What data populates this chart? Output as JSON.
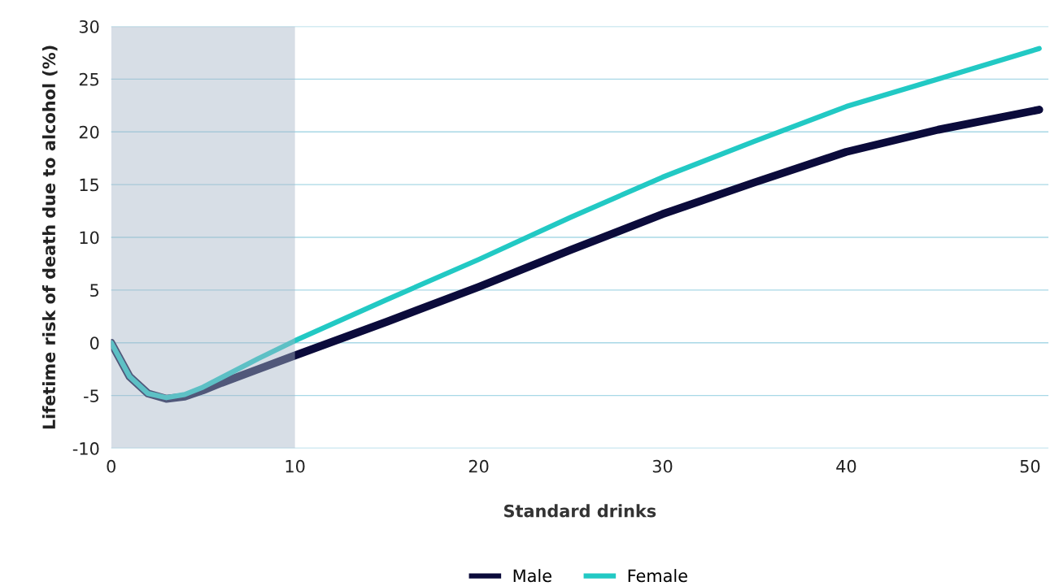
{
  "chart_data": {
    "type": "line",
    "xlabel": "Standard drinks",
    "ylabel": "Lifetime risk of death due to alcohol (%)",
    "x": [
      0,
      1,
      2,
      3,
      4,
      5,
      6,
      8,
      10,
      15,
      20,
      25,
      30,
      35,
      40,
      45,
      50.5
    ],
    "series": [
      {
        "name": "Male",
        "color": "#0b0b3b",
        "values": [
          0,
          -3.2,
          -4.8,
          -5.3,
          -5.1,
          -4.5,
          -3.8,
          -2.5,
          -1.2,
          2.0,
          5.3,
          8.8,
          12.2,
          15.2,
          18.1,
          20.2,
          22.1
        ]
      },
      {
        "name": "Female",
        "color": "#22c9c4",
        "values": [
          0,
          -3.2,
          -4.8,
          -5.2,
          -4.9,
          -4.2,
          -3.3,
          -1.5,
          0.2,
          4.1,
          7.9,
          11.9,
          15.7,
          19.1,
          22.4,
          25.0,
          27.9
        ]
      }
    ],
    "bands": [
      {
        "axis": "x",
        "from": 0,
        "to": 10,
        "color": "#a7b6c8"
      }
    ],
    "xlim": [
      0,
      51
    ],
    "xticks": [
      0,
      10,
      20,
      30,
      40,
      50
    ],
    "ylim": [
      -10,
      30
    ],
    "yticks": [
      -10,
      -5,
      0,
      5,
      10,
      15,
      20,
      25,
      30
    ],
    "grid": "y",
    "legend": "bottom",
    "marker": "none",
    "line_style": "solid"
  }
}
